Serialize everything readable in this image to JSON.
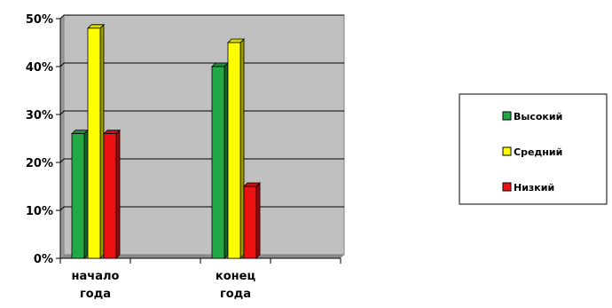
{
  "chart_data": {
    "type": "bar",
    "categories": [
      [
        "начало",
        "года"
      ],
      [
        "конец",
        "года"
      ]
    ],
    "series": [
      {
        "name": "Высокий",
        "color": "#22a845",
        "values": [
          26,
          40
        ]
      },
      {
        "name": "Средний",
        "color": "#ffff00",
        "values": [
          48,
          45
        ]
      },
      {
        "name": "Низкий",
        "color": "#ee1111",
        "values": [
          26,
          15
        ]
      }
    ],
    "yticks": [
      "0%",
      "10%",
      "20%",
      "30%",
      "40%",
      "50%"
    ],
    "ylim": [
      0,
      50
    ],
    "grid": true,
    "legend_position": "right",
    "title": "",
    "xlabel": "",
    "ylabel": ""
  }
}
